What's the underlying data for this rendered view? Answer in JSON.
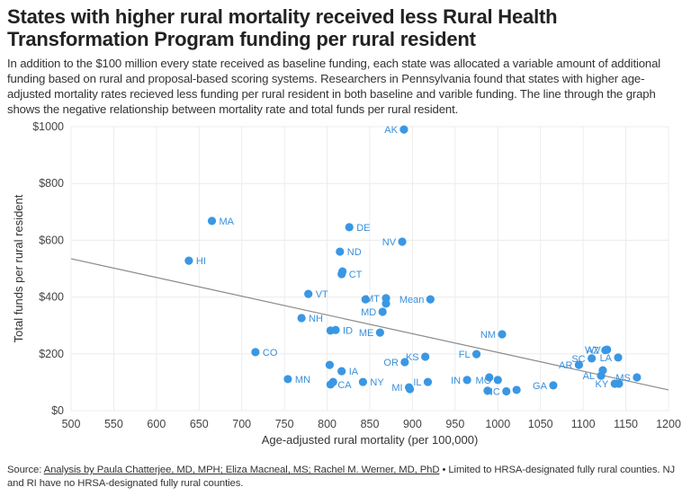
{
  "title": "States with higher rural mortality received less Rural Health Transformation Program funding per rural resident",
  "subtitle": "In addition to the $100 million every state received as baseline funding, each state was allocated a variable amount of additional funding based on rural and proposal-based scoring systems. Researchers in Pennsylvania found that states with higher age-adjusted mortality rates recieved less funding per rural resident in both baseline and varible funding. The line through the graph shows the negative relationship between mortality rate and total funds per rural resident.",
  "footer": {
    "source_label": "Source: ",
    "source_link": "Analysis by Paula Chatterjee, MD, MPH; Eliza Macneal, MS; Rachel M. Werner, MD, PhD",
    "note": " • Limited to HRSA-designated fully rural counties. NJ and RI have no HRSA-designated fully rural counties."
  },
  "colors": {
    "point": "#3a97e3",
    "label": "#3a8fd9",
    "trendline": "#8a8a8a",
    "grid": "#ececec"
  },
  "chart_data": {
    "type": "scatter",
    "xlabel": "Age-adjusted rural mortality (per 100,000)",
    "ylabel": "Total funds per rural resident",
    "xlim": [
      500,
      1200
    ],
    "ylim": [
      0,
      1000
    ],
    "xticks": [
      500,
      550,
      600,
      650,
      700,
      750,
      800,
      850,
      900,
      950,
      1000,
      1050,
      1100,
      1150,
      1200
    ],
    "yticks": [
      0,
      200,
      400,
      600,
      800,
      1000
    ],
    "ytick_labels": [
      "$0",
      "$200",
      "$400",
      "$600",
      "$800",
      "$1000"
    ],
    "grid": true,
    "trendline": {
      "x": [
        500,
        1200
      ],
      "y": [
        535,
        73
      ]
    },
    "points": [
      {
        "label": "AK",
        "x": 890,
        "y": 990,
        "label_side": "left"
      },
      {
        "label": "MA",
        "x": 665,
        "y": 668,
        "label_side": "right"
      },
      {
        "label": "DE",
        "x": 826,
        "y": 646,
        "label_side": "right"
      },
      {
        "label": "NV",
        "x": 888,
        "y": 595,
        "label_side": "left"
      },
      {
        "label": "ND",
        "x": 815,
        "y": 560,
        "label_side": "right"
      },
      {
        "label": "",
        "x": 818,
        "y": 490,
        "label_side": "right"
      },
      {
        "label": "CT",
        "x": 817,
        "y": 481,
        "label_side": "right"
      },
      {
        "label": "HI",
        "x": 638,
        "y": 528,
        "label_side": "right"
      },
      {
        "label": "VT",
        "x": 778,
        "y": 411,
        "label_side": "right"
      },
      {
        "label": "",
        "x": 845,
        "y": 392,
        "label_side": "right"
      },
      {
        "label": "MT",
        "x": 869,
        "y": 396,
        "label_side": "left"
      },
      {
        "label": "",
        "x": 869,
        "y": 377,
        "label_side": "right"
      },
      {
        "label": "Mean",
        "x": 921,
        "y": 392,
        "label_side": "left"
      },
      {
        "label": "MD",
        "x": 865,
        "y": 348,
        "label_side": "left"
      },
      {
        "label": "NH",
        "x": 770,
        "y": 326,
        "label_side": "right"
      },
      {
        "label": "",
        "x": 804,
        "y": 282,
        "label_side": "right"
      },
      {
        "label": "ID",
        "x": 810,
        "y": 284,
        "label_side": "right"
      },
      {
        "label": "ME",
        "x": 862,
        "y": 275,
        "label_side": "left"
      },
      {
        "label": "CO",
        "x": 716,
        "y": 206,
        "label_side": "right"
      },
      {
        "label": "NM",
        "x": 1005,
        "y": 269,
        "label_side": "left"
      },
      {
        "label": "FL",
        "x": 975,
        "y": 199,
        "label_side": "left"
      },
      {
        "label": "KS",
        "x": 915,
        "y": 190,
        "label_side": "left"
      },
      {
        "label": "OR",
        "x": 891,
        "y": 171,
        "label_side": "left"
      },
      {
        "label": "",
        "x": 803,
        "y": 161,
        "label_side": "right"
      },
      {
        "label": "IA",
        "x": 817,
        "y": 139,
        "label_side": "right"
      },
      {
        "label": "MN",
        "x": 754,
        "y": 111,
        "label_side": "right"
      },
      {
        "label": "",
        "x": 807,
        "y": 101,
        "label_side": "right"
      },
      {
        "label": "CA",
        "x": 804,
        "y": 92,
        "label_side": "right"
      },
      {
        "label": "NY",
        "x": 842,
        "y": 101,
        "label_side": "right"
      },
      {
        "label": "MI",
        "x": 896,
        "y": 82,
        "label_side": "left"
      },
      {
        "label": "",
        "x": 897,
        "y": 76,
        "label_side": "right"
      },
      {
        "label": "IL",
        "x": 918,
        "y": 101,
        "label_side": "left"
      },
      {
        "label": "IN",
        "x": 964,
        "y": 108,
        "label_side": "left"
      },
      {
        "label": "",
        "x": 990,
        "y": 117,
        "label_side": "right"
      },
      {
        "label": "MO",
        "x": 1000,
        "y": 108,
        "label_side": "left"
      },
      {
        "label": "",
        "x": 988,
        "y": 70,
        "label_side": "right"
      },
      {
        "label": "NC",
        "x": 1010,
        "y": 68,
        "label_side": "left"
      },
      {
        "label": "",
        "x": 1022,
        "y": 73,
        "label_side": "right"
      },
      {
        "label": "GA",
        "x": 1065,
        "y": 89,
        "label_side": "left"
      },
      {
        "label": "AR",
        "x": 1095,
        "y": 161,
        "label_side": "left"
      },
      {
        "label": "SC",
        "x": 1110,
        "y": 184,
        "label_side": "left"
      },
      {
        "label": "WV",
        "x": 1128,
        "y": 215,
        "label_side": "left"
      },
      {
        "label": "AZ",
        "x": 1126,
        "y": 213,
        "label_side": "left"
      },
      {
        "label": "LA",
        "x": 1141,
        "y": 187,
        "label_side": "left"
      },
      {
        "label": "",
        "x": 1123,
        "y": 142,
        "label_side": "right"
      },
      {
        "label": "AL",
        "x": 1121,
        "y": 123,
        "label_side": "left"
      },
      {
        "label": "MS",
        "x": 1163,
        "y": 117,
        "label_side": "left"
      },
      {
        "label": "KY",
        "x": 1137,
        "y": 95,
        "label_side": "left"
      },
      {
        "label": "",
        "x": 1142,
        "y": 95,
        "label_side": "right"
      }
    ]
  }
}
